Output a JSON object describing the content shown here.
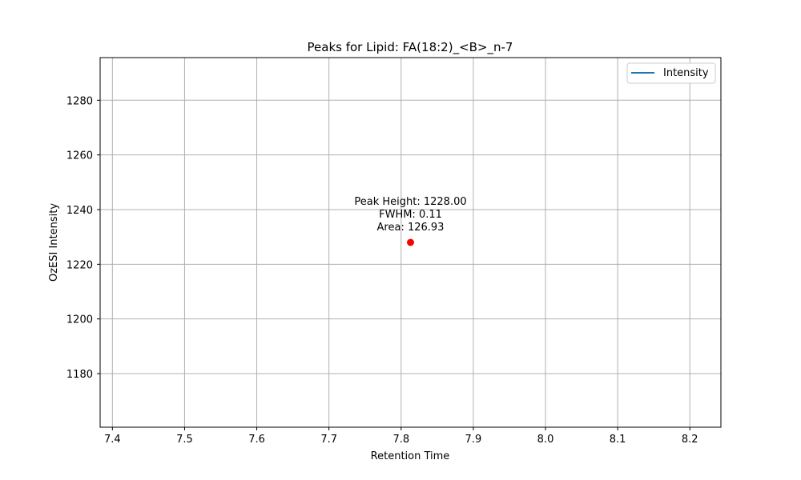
{
  "chart_data": {
    "type": "scatter",
    "title": "Peaks for Lipid: FA(18:2)_<B>_n-7",
    "xlabel": "Retention Time",
    "ylabel": "OzESI Intensity",
    "xlim": [
      7.383,
      8.243
    ],
    "ylim": [
      1160.4,
      1295.6
    ],
    "x_ticks": [
      7.4,
      7.5,
      7.6,
      7.7,
      7.8,
      7.9,
      8.0,
      8.1,
      8.2
    ],
    "x_tick_labels": [
      "7.4",
      "7.5",
      "7.6",
      "7.7",
      "7.8",
      "7.9",
      "8.0",
      "8.1",
      "8.2"
    ],
    "y_ticks": [
      1180,
      1200,
      1220,
      1240,
      1260,
      1280
    ],
    "y_tick_labels": [
      "1180",
      "1200",
      "1220",
      "1240",
      "1260",
      "1280"
    ],
    "grid": true,
    "legend_position": "top-right",
    "series": [
      {
        "name": "Intensity",
        "kind": "line",
        "color": "#1f77b4",
        "x": [],
        "y": []
      }
    ],
    "peaks": [
      {
        "x": 7.813,
        "y": 1228,
        "color": "#ff0000"
      }
    ],
    "annotations": [
      {
        "x": 7.813,
        "y": 1228,
        "lines": [
          "Peak Height: 1228.00",
          "FWHM: 0.11",
          "Area: 126.93"
        ]
      }
    ]
  }
}
